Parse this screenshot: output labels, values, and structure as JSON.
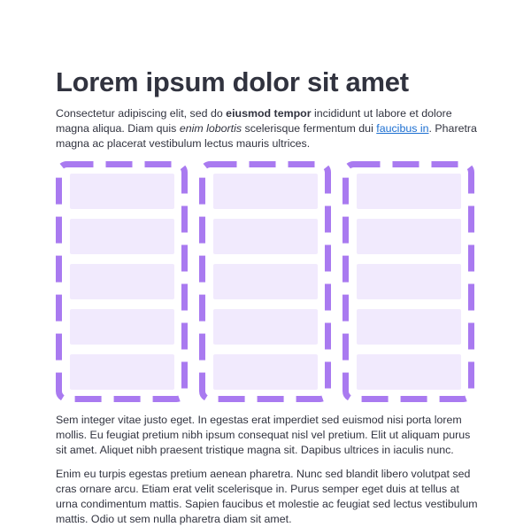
{
  "title": "Lorem ipsum dolor sit amet",
  "intro": {
    "t1": "Consectetur adipiscing elit, sed do ",
    "bold": "eiusmod tempor",
    "t2": " incididunt ut labore et dolore magna aliqua. Diam quis ",
    "italic": "enim lobortis",
    "t3": " scelerisque fermentum dui ",
    "link": "faucibus in",
    "t4": ". Pharetra magna ac placerat vestibulum lectus mauris ultrices."
  },
  "columns": [
    {
      "items": 5
    },
    {
      "items": 5
    },
    {
      "items": 5
    }
  ],
  "colors": {
    "dash_border": "#a97af0",
    "item_fill": "#f1eafd",
    "link": "#1c6fd1"
  },
  "paragraphs": [
    "Sem integer vitae justo eget. In egestas erat imperdiet sed euismod nisi porta lorem mollis. Eu feugiat pretium nibh ipsum consequat nisl vel pretium. Elit ut aliquam purus sit amet. Aliquet nibh praesent tristique magna sit. Dapibus ultrices in iaculis nunc.",
    "Enim eu turpis egestas pretium aenean pharetra. Nunc sed blandit libero volutpat sed cras ornare arcu. Etiam erat velit scelerisque in. Purus semper eget duis at tellus at urna condimentum mattis. Sapien faucibus et molestie ac feugiat sed lectus vestibulum mattis. Odio ut sem nulla pharetra diam sit amet."
  ]
}
